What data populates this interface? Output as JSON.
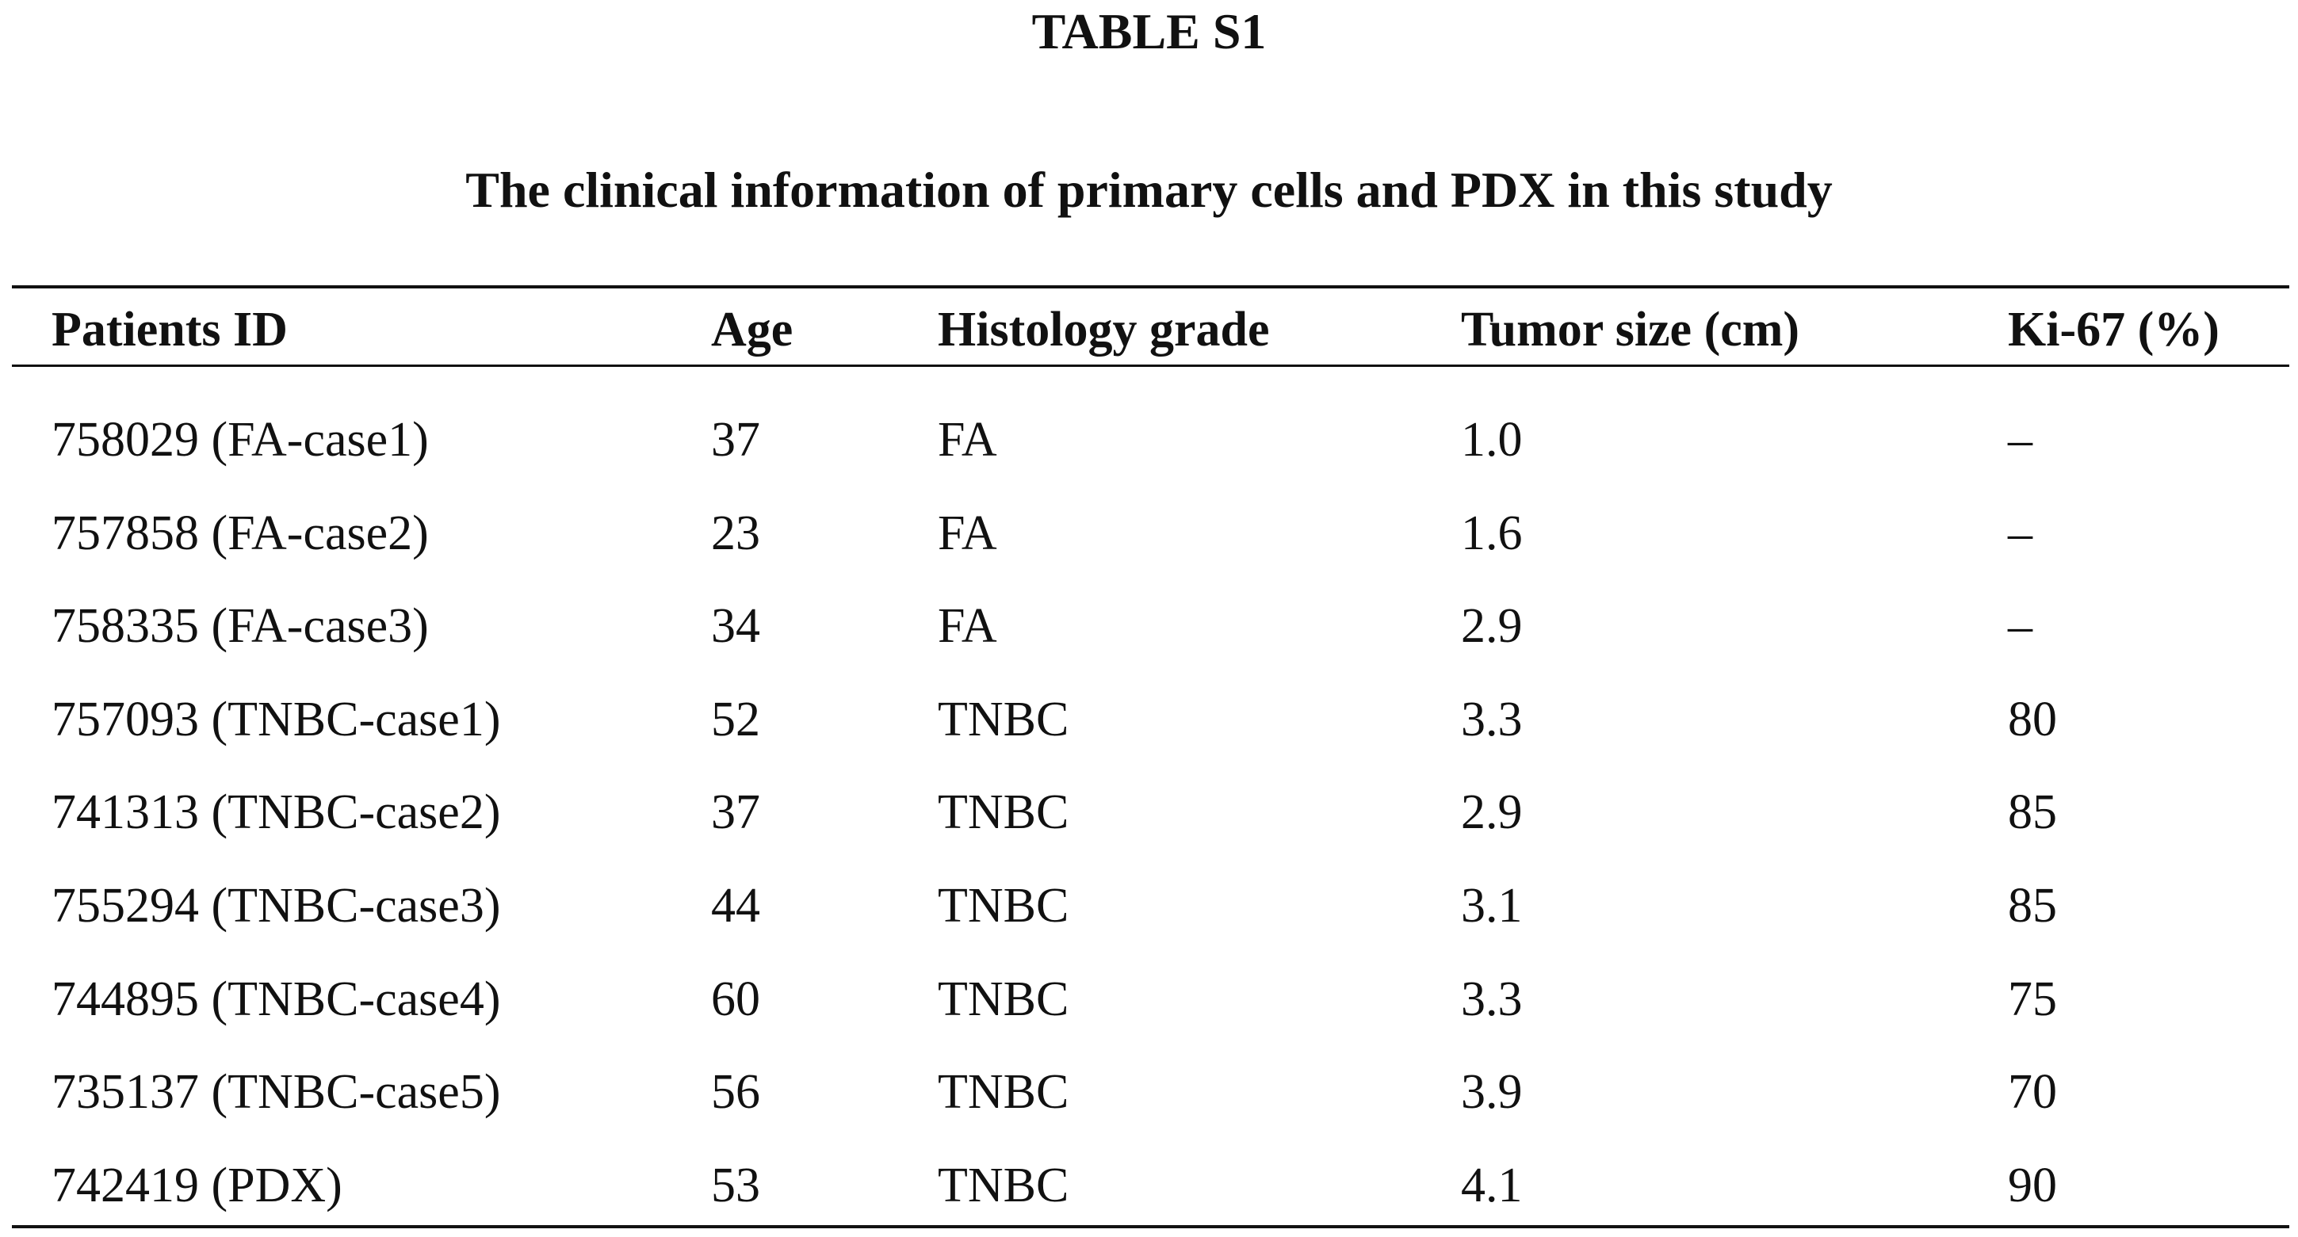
{
  "header": {
    "title": "TABLE S1",
    "subtitle": "The clinical information of primary cells and PDX in this study"
  },
  "table": {
    "columns": [
      "Patients ID",
      "Age",
      "Histology grade",
      "Tumor size (cm)",
      "Ki-67 (%)"
    ],
    "rows": [
      [
        "758029 (FA-case1)",
        "37",
        "FA",
        "1.0",
        "–"
      ],
      [
        "757858 (FA-case2)",
        "23",
        "FA",
        "1.6",
        "–"
      ],
      [
        "758335 (FA-case3)",
        "34",
        "FA",
        "2.9",
        "–"
      ],
      [
        "757093 (TNBC-case1)",
        "52",
        "TNBC",
        "3.3",
        "80"
      ],
      [
        "741313 (TNBC-case2)",
        "37",
        "TNBC",
        "2.9",
        "85"
      ],
      [
        "755294 (TNBC-case3)",
        "44",
        "TNBC",
        "3.1",
        "85"
      ],
      [
        "744895 (TNBC-case4)",
        "60",
        "TNBC",
        "3.3",
        "75"
      ],
      [
        "735137 (TNBC-case5)",
        "56",
        "TNBC",
        "3.9",
        "70"
      ],
      [
        "742419 (PDX)",
        "53",
        "TNBC",
        "4.1",
        "90"
      ]
    ]
  }
}
